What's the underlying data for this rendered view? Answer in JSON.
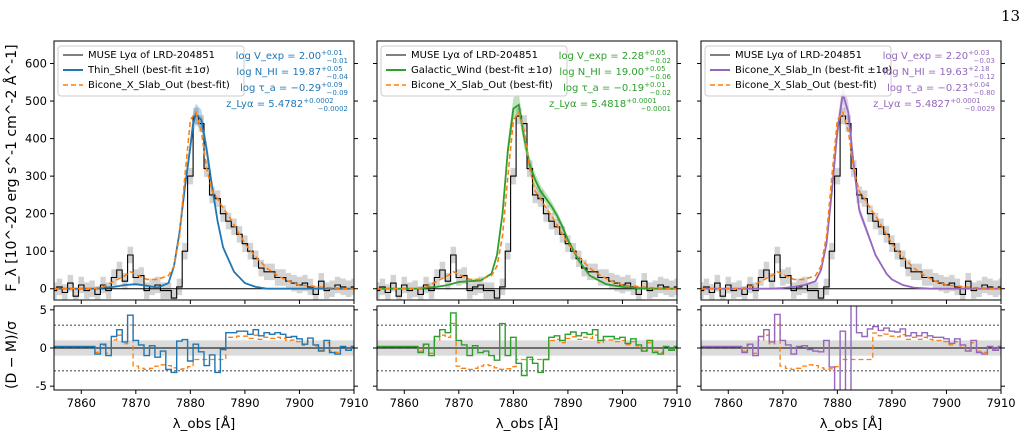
{
  "page_number": "13",
  "shared": {
    "ylabel_top": "F_λ [10^-20 erg s^-1 cm^-2 Å^-1]",
    "ylabel_bottom": "(D − M)/σ",
    "xlabel": "λ_obs [Å]",
    "x_ticks": [
      7860,
      7870,
      7880,
      7890,
      7900,
      7910
    ],
    "y_ticks_top": [
      0,
      100,
      200,
      300,
      400,
      500,
      600
    ],
    "y_ticks_bottom": [
      -5,
      0,
      5
    ],
    "xlim": [
      7855,
      7910
    ],
    "ylim_top": [
      -30,
      660
    ],
    "ylim_bottom": [
      -5.5,
      5.5
    ],
    "residual_band": [
      -1,
      1
    ],
    "residual_dotted": [
      -3,
      3
    ],
    "colors": {
      "data": "#000000",
      "error": "#c8c8c8",
      "alt": "#ff7f0e",
      "band": "#cccccc"
    },
    "data_legend": "MUSE Lyα of LRD-204851",
    "alt_legend": "Bicone_X_Slab_Out (best-fit)"
  },
  "chart_data": [
    {
      "type": "line",
      "panel": "Thin_Shell",
      "color": "#1f77b4",
      "legend": [
        "MUSE Lyα of LRD-204851",
        "Thin_Shell (best-fit ±1σ)",
        "Bicone_X_Slab_Out (best-fit)"
      ],
      "params": [
        {
          "label": "log V_exp",
          "value": "2.00",
          "sup": "+0.01",
          "sub": "−0.01"
        },
        {
          "label": "log N_HI",
          "value": "19.87",
          "sup": "+0.05",
          "sub": "−0.04"
        },
        {
          "label": "log τ_a",
          "value": "−0.29",
          "sup": "+0.09",
          "sub": "−0.09"
        },
        {
          "label": "z_Lyα",
          "value": "5.4782",
          "sup": "+0.0002",
          "sub": "−0.0002"
        }
      ],
      "model": {
        "x": [
          7855,
          7862,
          7866,
          7868,
          7870,
          7872,
          7874,
          7876,
          7877,
          7878,
          7879,
          7880,
          7880.5,
          7881,
          7882,
          7883,
          7884,
          7885,
          7886,
          7888,
          7890,
          7892,
          7894,
          7897,
          7910
        ],
        "y": [
          0,
          0,
          5,
          10,
          12,
          8,
          3,
          15,
          60,
          150,
          270,
          380,
          440,
          465,
          450,
          370,
          270,
          180,
          110,
          45,
          15,
          5,
          0,
          0,
          0
        ]
      },
      "residual": {
        "x": [
          7855,
          7862,
          7863,
          7864,
          7865,
          7866,
          7867,
          7868,
          7869,
          7870,
          7871,
          7872,
          7873,
          7874,
          7875,
          7876,
          7877,
          7878,
          7879,
          7880,
          7881,
          7882,
          7883,
          7884,
          7885,
          7886,
          7887,
          7888,
          7889,
          7890,
          7891,
          7892,
          7893,
          7894,
          7895,
          7896,
          7897,
          7898,
          7899,
          7900,
          7901,
          7902,
          7903,
          7904,
          7905,
          7906,
          7907,
          7908,
          7909,
          7910
        ],
        "y": [
          0.2,
          0.2,
          -0.8,
          0.5,
          -1.0,
          1.5,
          2.4,
          0.8,
          4.3,
          1.0,
          0.4,
          -1.0,
          0.3,
          -1.2,
          -0.4,
          -2.8,
          -3.2,
          0.9,
          1.1,
          -1.7,
          0.5,
          -0.5,
          -2.3,
          -0.9,
          -3.2,
          -0.2,
          2.0,
          2.0,
          2.2,
          2.2,
          1.8,
          2.4,
          1.6,
          2.0,
          1.8,
          2.0,
          1.8,
          1.4,
          1.5,
          1.2,
          0.5,
          1.3,
          0.4,
          -0.4,
          1.0,
          -0.6,
          -0.8,
          0.2,
          -0.3,
          0.2
        ]
      }
    },
    {
      "type": "line",
      "panel": "Galactic_Wind",
      "color": "#2ca02c",
      "legend": [
        "MUSE Lyα of LRD-204851",
        "Galactic_Wind (best-fit ±1σ)",
        "Bicone_X_Slab_Out (best-fit)"
      ],
      "params": [
        {
          "label": "log V_exp",
          "value": "2.28",
          "sup": "+0.05",
          "sub": "−0.02"
        },
        {
          "label": "log N_HI",
          "value": "19.00",
          "sup": "+0.05",
          "sub": "−0.06"
        },
        {
          "label": "log τ_a",
          "value": "−0.19",
          "sup": "+0.01",
          "sub": "−0.02"
        },
        {
          "label": "z_Lyα",
          "value": "5.4818",
          "sup": "+0.0001",
          "sub": "−0.0001"
        }
      ],
      "model": {
        "x": [
          7855,
          7862,
          7866,
          7868,
          7870,
          7872,
          7874,
          7876,
          7877,
          7878,
          7879,
          7880,
          7881,
          7882,
          7883,
          7884,
          7885,
          7886,
          7887,
          7888,
          7889,
          7890,
          7892,
          7894,
          7897,
          7900,
          7904,
          7910
        ],
        "y": [
          0,
          0,
          5,
          10,
          18,
          20,
          22,
          40,
          90,
          200,
          370,
          480,
          490,
          400,
          330,
          290,
          260,
          240,
          220,
          195,
          165,
          130,
          75,
          35,
          12,
          5,
          0,
          0
        ]
      },
      "residual": {
        "x": [
          7855,
          7862,
          7863,
          7864,
          7865,
          7866,
          7867,
          7868,
          7869,
          7870,
          7871,
          7872,
          7873,
          7874,
          7875,
          7876,
          7877,
          7878,
          7879,
          7880,
          7881,
          7882,
          7883,
          7884,
          7885,
          7886,
          7887,
          7888,
          7889,
          7890,
          7891,
          7892,
          7893,
          7894,
          7895,
          7896,
          7897,
          7898,
          7899,
          7900,
          7901,
          7902,
          7903,
          7904,
          7905,
          7906,
          7907,
          7908,
          7909,
          7910
        ],
        "y": [
          0.2,
          0.2,
          -0.6,
          0.5,
          -1.0,
          1.5,
          2.4,
          2.0,
          4.6,
          1.0,
          0.4,
          -1.0,
          0.3,
          -0.6,
          -0.4,
          -1.0,
          -1.6,
          3.2,
          -1.0,
          1.4,
          -2.0,
          -3.6,
          -1.2,
          -2.0,
          -3.2,
          -1.5,
          1.4,
          1.6,
          1.0,
          1.8,
          2.1,
          1.6,
          2.0,
          1.8,
          2.4,
          1.0,
          1.5,
          1.5,
          1.2,
          1.4,
          0.6,
          1.2,
          0.4,
          -0.4,
          1.0,
          -0.6,
          -0.8,
          0.2,
          -0.3,
          0.2
        ]
      }
    },
    {
      "type": "line",
      "panel": "Bicone_X_Slab_In",
      "color": "#9467bd",
      "legend": [
        "MUSE Lyα of LRD-204851",
        "Bicone_X_Slab_In (best-fit ±1σ)",
        "Bicone_X_Slab_Out (best-fit)"
      ],
      "params": [
        {
          "label": "log V_exp",
          "value": "2.20",
          "sup": "+0.03",
          "sub": "−0.03"
        },
        {
          "label": "log N_HI",
          "value": "19.63",
          "sup": "+2.18",
          "sub": "−0.12"
        },
        {
          "label": "log τ_a",
          "value": "−0.23",
          "sup": "+0.04",
          "sub": "−0.80"
        },
        {
          "label": "z_Lyα",
          "value": "5.4827",
          "sup": "+0.0001",
          "sub": "−0.0029"
        }
      ],
      "model": {
        "x": [
          7855,
          7866,
          7868,
          7870,
          7872,
          7874,
          7876,
          7877,
          7878,
          7879,
          7880,
          7881,
          7882,
          7883,
          7884,
          7885,
          7886,
          7887,
          7888,
          7889,
          7890,
          7892,
          7894,
          7897,
          7900,
          7910
        ],
        "y": [
          0,
          0,
          0,
          2,
          5,
          10,
          20,
          50,
          120,
          260,
          420,
          520,
          470,
          330,
          210,
          170,
          130,
          90,
          65,
          40,
          25,
          10,
          3,
          0,
          0,
          0
        ]
      },
      "residual": {
        "x": [
          7855,
          7862,
          7863,
          7864,
          7865,
          7866,
          7867,
          7868,
          7869,
          7870,
          7871,
          7872,
          7873,
          7874,
          7875,
          7876,
          7877,
          7878,
          7879,
          7880,
          7881,
          7882,
          7883,
          7884,
          7885,
          7886,
          7887,
          7888,
          7889,
          7890,
          7891,
          7892,
          7893,
          7894,
          7895,
          7896,
          7897,
          7898,
          7899,
          7900,
          7901,
          7902,
          7903,
          7904,
          7905,
          7906,
          7907,
          7908,
          7909,
          7910
        ],
        "y": [
          0.2,
          0.2,
          -0.6,
          0.5,
          -1.0,
          1.5,
          2.4,
          0.8,
          4.4,
          1.0,
          0.4,
          -0.8,
          0.2,
          0.3,
          -0.2,
          -0.4,
          -0.5,
          1.0,
          -2.5,
          -6.0,
          2.2,
          -6.0,
          6.0,
          2.0,
          1.5,
          2.5,
          2.8,
          2.3,
          2.6,
          2.2,
          2.1,
          2.5,
          1.6,
          2.0,
          1.6,
          2.0,
          1.6,
          1.4,
          1.4,
          1.2,
          0.6,
          1.2,
          0.4,
          -0.4,
          1.0,
          -0.6,
          -0.8,
          0.2,
          -0.3,
          0.2
        ]
      }
    }
  ],
  "observed": {
    "x": [
      7855,
      7856,
      7857,
      7858,
      7859,
      7860,
      7861,
      7862,
      7863,
      7864,
      7865,
      7866,
      7867,
      7868,
      7869,
      7870,
      7871,
      7872,
      7873,
      7874,
      7875,
      7876,
      7877,
      7878,
      7879,
      7880,
      7881,
      7882,
      7883,
      7884,
      7885,
      7886,
      7887,
      7888,
      7889,
      7890,
      7891,
      7892,
      7893,
      7894,
      7895,
      7896,
      7897,
      7898,
      7899,
      7900,
      7901,
      7902,
      7903,
      7904,
      7905,
      7906,
      7907,
      7908,
      7909,
      7910
    ],
    "y": [
      -5,
      5,
      -10,
      15,
      -20,
      10,
      -5,
      0,
      -15,
      10,
      -5,
      30,
      50,
      20,
      90,
      30,
      35,
      -5,
      5,
      10,
      -5,
      -5,
      -25,
      5,
      100,
      300,
      460,
      440,
      320,
      250,
      240,
      200,
      180,
      165,
      145,
      120,
      100,
      80,
      55,
      45,
      45,
      30,
      30,
      20,
      15,
      10,
      15,
      5,
      -15,
      20,
      -5,
      0,
      10,
      5,
      0,
      5
    ]
  },
  "alt_model": {
    "x": [
      7855,
      7862,
      7864,
      7866,
      7868,
      7869,
      7870,
      7872,
      7874,
      7876,
      7877,
      7878,
      7879,
      7880,
      7881,
      7882,
      7883,
      7884,
      7885,
      7886,
      7887,
      7888,
      7889,
      7890,
      7892,
      7894,
      7896,
      7898,
      7900,
      7905,
      7910
    ],
    "y": [
      0,
      0,
      5,
      20,
      35,
      45,
      38,
      25,
      25,
      35,
      60,
      140,
      300,
      450,
      470,
      420,
      320,
      260,
      240,
      215,
      195,
      170,
      145,
      120,
      85,
      55,
      35,
      20,
      10,
      3,
      0
    ]
  }
}
